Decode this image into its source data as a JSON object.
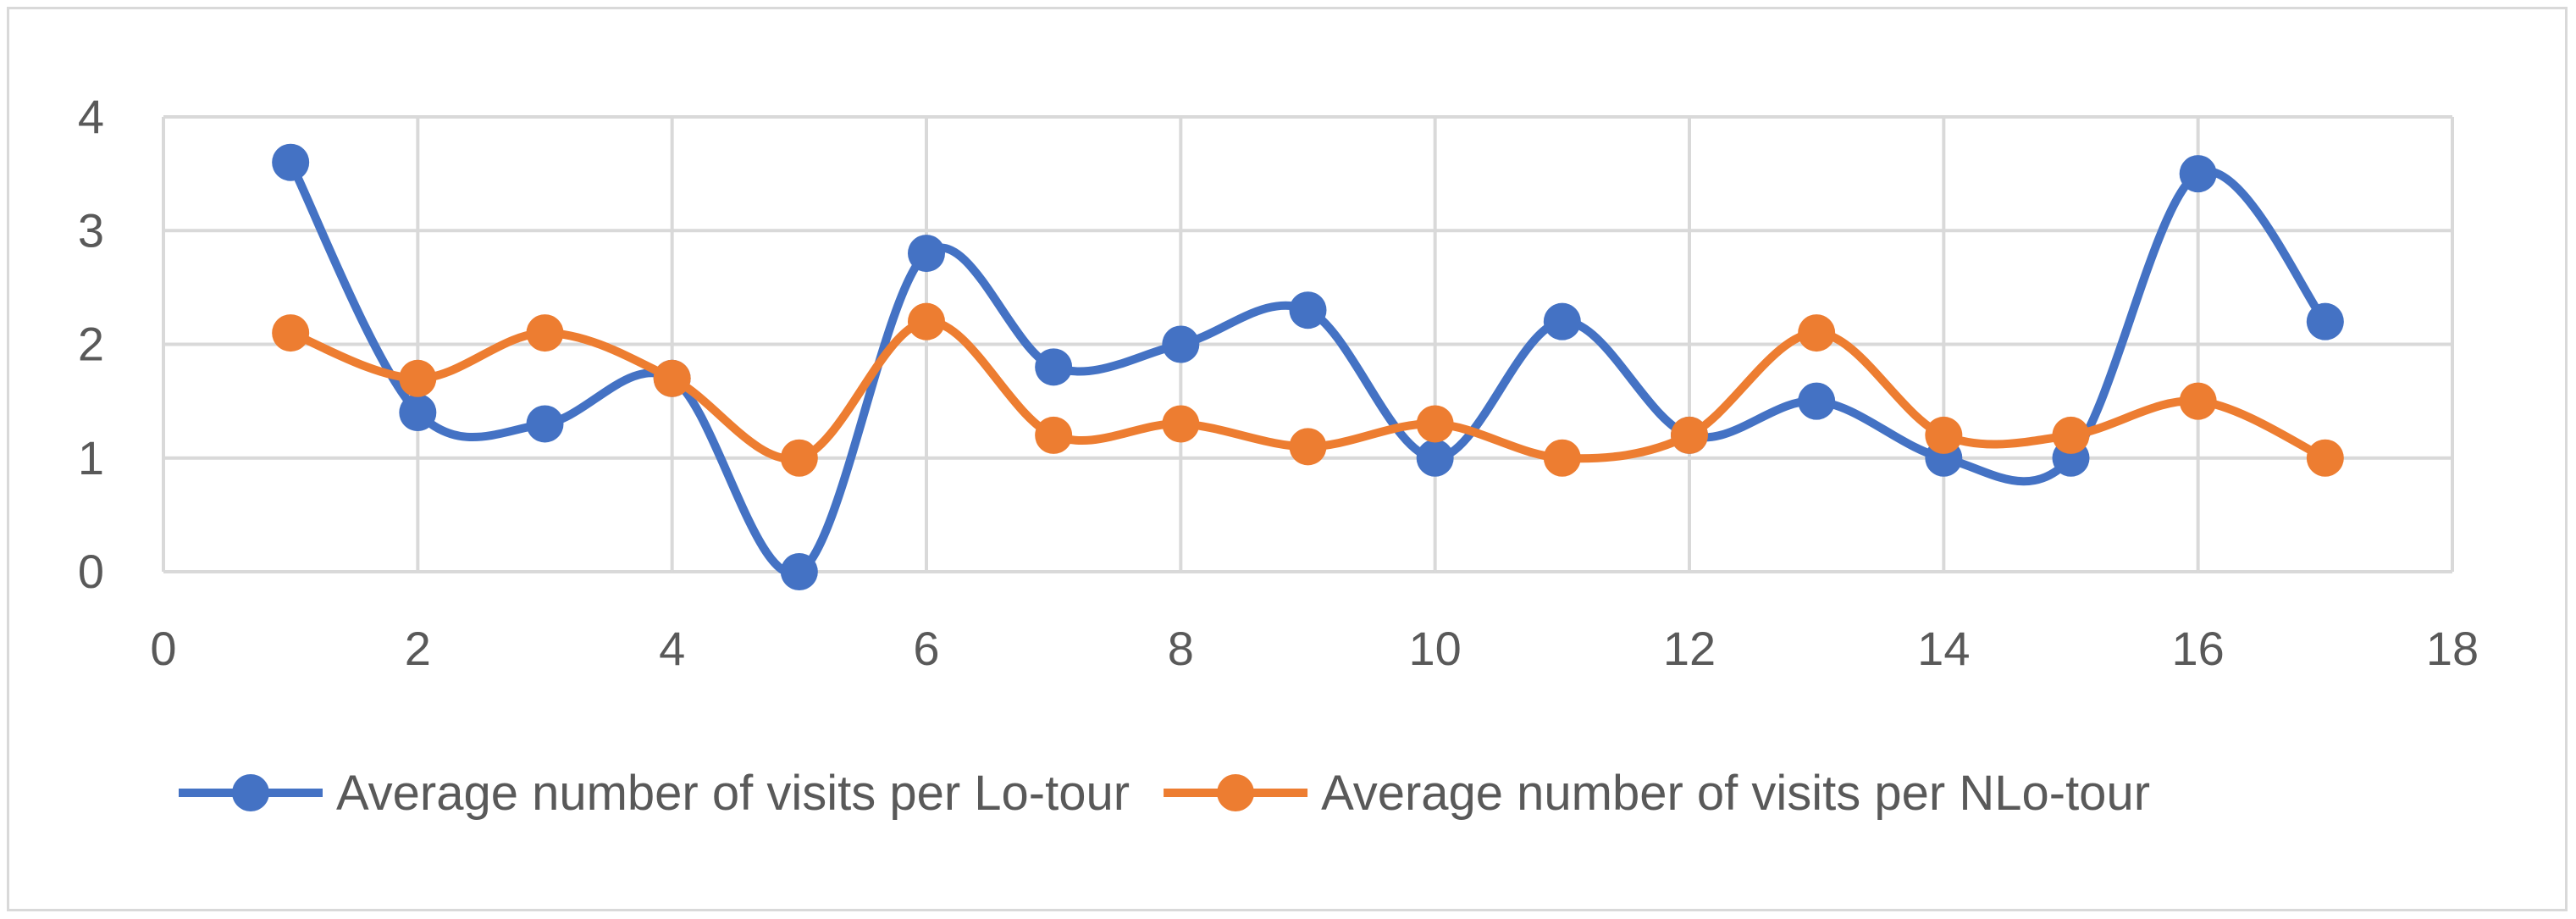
{
  "chart_data": {
    "type": "line",
    "smooth": true,
    "grid": true,
    "legend_position": "bottom",
    "title": "",
    "xlabel": "",
    "ylabel": "",
    "xlim": [
      0,
      18
    ],
    "ylim": [
      0,
      4
    ],
    "x_ticks": [
      0,
      2,
      4,
      6,
      8,
      10,
      12,
      14,
      16,
      18
    ],
    "y_ticks": [
      0,
      1,
      2,
      3,
      4
    ],
    "x_tick_labels": [
      "0",
      "2",
      "4",
      "6",
      "8",
      "10",
      "12",
      "14",
      "16",
      "18"
    ],
    "y_tick_labels": [
      "0",
      "1",
      "2",
      "3",
      "4"
    ],
    "x": [
      1,
      2,
      3,
      4,
      5,
      6,
      7,
      8,
      9,
      10,
      11,
      12,
      13,
      14,
      15,
      16,
      17
    ],
    "series": [
      {
        "name": "Average number of visits per Lo-tour",
        "color": "#4472c4",
        "values": [
          3.6,
          1.4,
          1.3,
          1.7,
          0,
          2.8,
          1.8,
          2.0,
          2.3,
          1.0,
          2.2,
          1.2,
          1.5,
          1.0,
          1.0,
          3.5,
          2.2
        ]
      },
      {
        "name": "Average number of visits per NLo-tour",
        "color": "#ed7d31",
        "values": [
          2.1,
          1.7,
          2.1,
          1.7,
          1.0,
          2.2,
          1.2,
          1.3,
          1.1,
          1.3,
          1.0,
          1.2,
          2.1,
          1.2,
          1.2,
          1.5,
          1.0
        ]
      }
    ]
  }
}
